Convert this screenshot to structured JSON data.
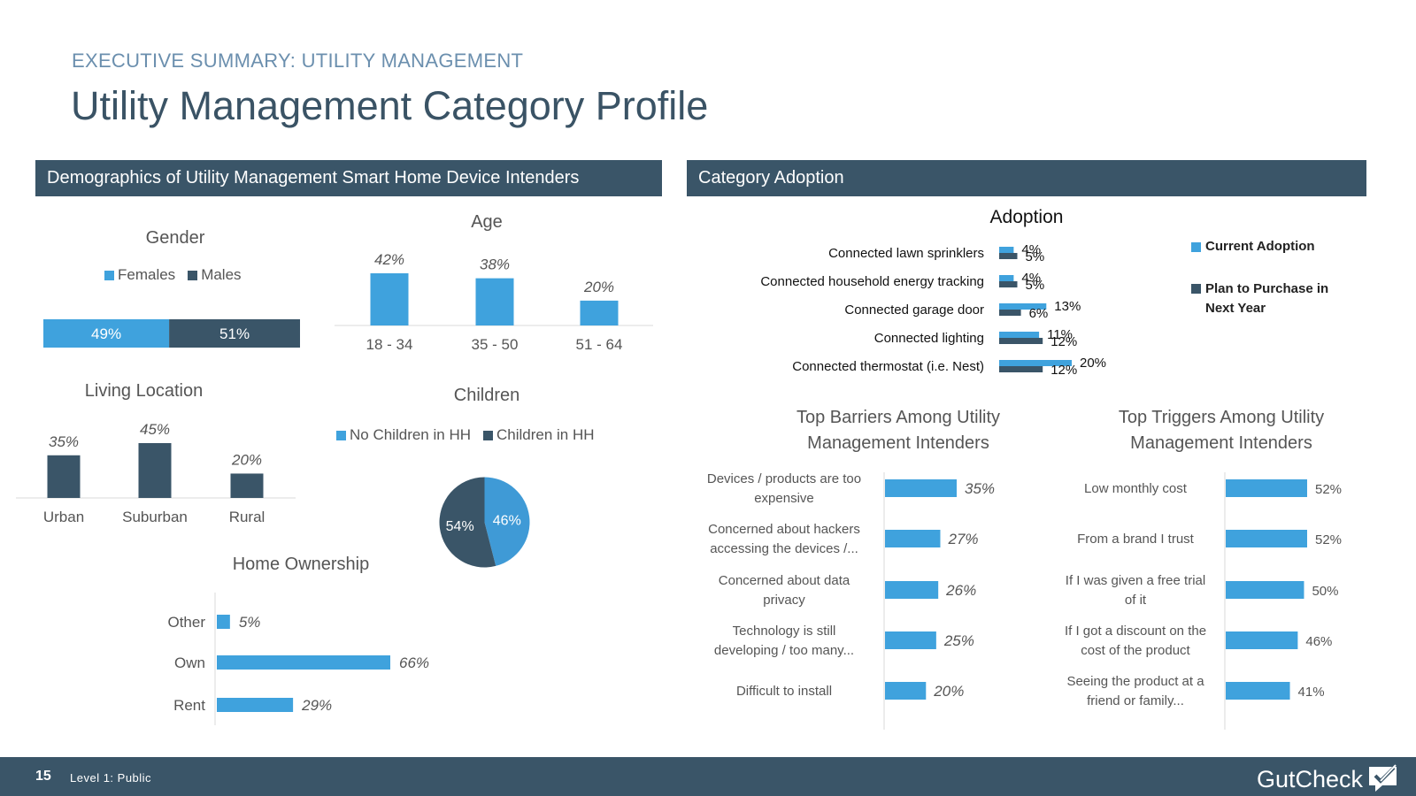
{
  "header": {
    "eyebrow": "EXECUTIVE SUMMARY: UTILITY MANAGEMENT",
    "title": "Utility Management Category Profile"
  },
  "sections": {
    "demographics": "Demographics of Utility Management Smart Home Device Intenders",
    "adoption": "Category Adoption"
  },
  "colors": {
    "light": "#3fa2dd",
    "dark": "#3a5568",
    "header": "#3a5568"
  },
  "footer": {
    "page": "15",
    "level": "Level 1: Public",
    "brand": "GutCheck"
  },
  "chart_data": [
    {
      "id": "gender",
      "type": "bar",
      "title": "Gender",
      "stacked": true,
      "series": [
        {
          "name": "Females",
          "values": [
            49
          ],
          "label": "49%"
        },
        {
          "name": "Males",
          "values": [
            51
          ],
          "label": "51%"
        }
      ]
    },
    {
      "id": "age",
      "type": "bar",
      "title": "Age",
      "categories": [
        "18 - 34",
        "35 - 50",
        "51 - 64"
      ],
      "values": [
        42,
        38,
        20
      ],
      "labels": [
        "42%",
        "38%",
        "20%"
      ]
    },
    {
      "id": "living",
      "type": "bar",
      "title": "Living Location",
      "categories": [
        "Urban",
        "Suburban",
        "Rural"
      ],
      "values": [
        35,
        45,
        20
      ],
      "labels": [
        "35%",
        "45%",
        "20%"
      ]
    },
    {
      "id": "children",
      "type": "pie",
      "title": "Children",
      "categories": [
        "No Children in HH",
        "Children in HH"
      ],
      "values": [
        46,
        54
      ],
      "labels": [
        "46%",
        "54%"
      ]
    },
    {
      "id": "home",
      "type": "bar",
      "title": "Home Ownership",
      "orientation": "horizontal",
      "categories": [
        "Other",
        "Own",
        "Rent"
      ],
      "values": [
        5,
        66,
        29
      ],
      "labels": [
        "5%",
        "66%",
        "29%"
      ]
    },
    {
      "id": "adoption",
      "type": "bar",
      "title": "Adoption",
      "orientation": "horizontal",
      "categories": [
        "Connected lawn sprinklers",
        "Connected household energy tracking",
        "Connected garage door",
        "Connected lighting",
        "Connected thermostat (i.e. Nest)"
      ],
      "series": [
        {
          "name": "Current Adoption",
          "values": [
            4,
            4,
            13,
            11,
            20
          ],
          "labels": [
            "4%",
            "4%",
            "13%",
            "11%",
            "20%"
          ]
        },
        {
          "name": "Plan to Purchase in Next Year",
          "values": [
            5,
            5,
            6,
            12,
            12
          ],
          "labels": [
            "5%",
            "5%",
            "6%",
            "12%",
            "12%"
          ]
        }
      ]
    },
    {
      "id": "barriers",
      "type": "bar",
      "orientation": "horizontal",
      "title_lines": [
        "Top Barriers Among Utility",
        "Management Intenders"
      ],
      "categories": [
        [
          "Devices / products are too",
          "expensive"
        ],
        [
          "Concerned about hackers",
          "accessing the devices /..."
        ],
        [
          "Concerned about data",
          "privacy"
        ],
        [
          "Technology is still",
          "developing / too many..."
        ],
        [
          "Difficult to install"
        ]
      ],
      "values": [
        35,
        27,
        26,
        25,
        20
      ],
      "labels": [
        "35%",
        "27%",
        "26%",
        "25%",
        "20%"
      ]
    },
    {
      "id": "triggers",
      "type": "bar",
      "orientation": "horizontal",
      "title_lines": [
        "Top Triggers Among Utility",
        "Management Intenders"
      ],
      "categories": [
        [
          "Low monthly cost"
        ],
        [
          "From a brand I trust"
        ],
        [
          "If I was given a free trial",
          "of it"
        ],
        [
          "If I got a discount on the",
          "cost of the product"
        ],
        [
          "Seeing the product at a",
          "friend or family..."
        ]
      ],
      "values": [
        52,
        52,
        50,
        46,
        41
      ],
      "labels": [
        "52%",
        "52%",
        "50%",
        "46%",
        "41%"
      ]
    }
  ]
}
